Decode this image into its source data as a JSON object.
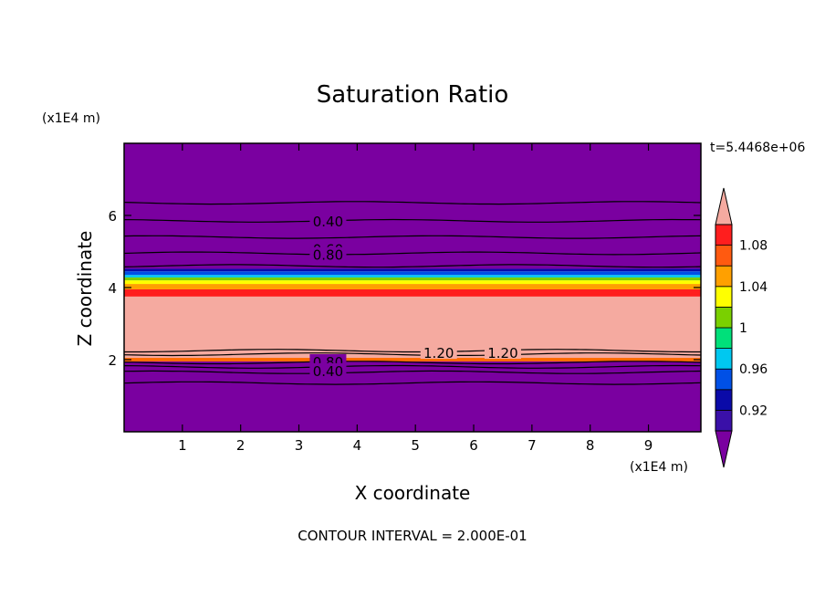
{
  "chart_data": {
    "type": "heatmap",
    "title": "Saturation Ratio",
    "xlabel": "X coordinate",
    "ylabel": "Z coordinate",
    "x_unit": "(x1E4 m)",
    "y_unit": "(x1E4 m)",
    "x_ticks": [
      "1",
      "2",
      "3",
      "4",
      "5",
      "6",
      "7",
      "8",
      "9"
    ],
    "y_ticks": [
      "2",
      "4",
      "6"
    ],
    "xlim": [
      0,
      9.9
    ],
    "ylim": [
      0,
      8.0
    ],
    "time_label": "t=5.4468e+06",
    "footer": "CONTOUR INTERVAL = 2.000E-01",
    "colorbar": {
      "labels": [
        "0.92",
        "0.96",
        "1",
        "1.04",
        "1.08"
      ],
      "levels": [
        0.92,
        0.94,
        0.96,
        0.98,
        1.0,
        1.02,
        1.04,
        1.06,
        1.08,
        1.1
      ],
      "colors": [
        "#7a00a0",
        "#3a10a8",
        "#0a0aa8",
        "#0050e6",
        "#00c8f0",
        "#00e07a",
        "#7ad000",
        "#ffff00",
        "#ffa000",
        "#ff5a10",
        "#ff1e1e",
        "#f5aaa0"
      ]
    },
    "bands": [
      {
        "z_from": 0.0,
        "z_to": 1.95,
        "color": "#7a00a0"
      },
      {
        "z_from": 1.95,
        "z_to": 2.05,
        "color": "#ff6a00"
      },
      {
        "z_from": 2.05,
        "z_to": 3.75,
        "color": "#f5aaa0"
      },
      {
        "z_from": 3.75,
        "z_to": 3.95,
        "color": "#ff1e1e"
      },
      {
        "z_from": 3.95,
        "z_to": 4.1,
        "color": "#ffa000"
      },
      {
        "z_from": 4.1,
        "z_to": 4.2,
        "color": "#ffff00"
      },
      {
        "z_from": 4.2,
        "z_to": 4.28,
        "color": "#7ad000"
      },
      {
        "z_from": 4.28,
        "z_to": 4.35,
        "color": "#00c8f0"
      },
      {
        "z_from": 4.35,
        "z_to": 4.45,
        "color": "#0050e6"
      },
      {
        "z_from": 4.45,
        "z_to": 4.52,
        "color": "#0a0aa8"
      },
      {
        "z_from": 4.52,
        "z_to": 8.0,
        "color": "#7a00a0"
      }
    ],
    "contours": [
      {
        "z": 1.35
      },
      {
        "z": 1.65
      },
      {
        "z": 1.8
      },
      {
        "z": 1.92
      },
      {
        "z": 2.15
      },
      {
        "z": 2.25
      },
      {
        "z": 4.6
      },
      {
        "z": 4.95
      },
      {
        "z": 5.4
      },
      {
        "z": 5.85
      },
      {
        "z": 6.35
      }
    ],
    "contour_labels": [
      {
        "text": "0.40",
        "x": 3.5,
        "z": 5.85
      },
      {
        "text": "0.60",
        "x": 3.5,
        "z": 5.08
      },
      {
        "text": "0.80",
        "x": 3.5,
        "z": 4.92
      },
      {
        "text": "1.20",
        "x": 5.4,
        "z": 2.2
      },
      {
        "text": "1.20",
        "x": 6.5,
        "z": 2.2
      },
      {
        "text": "0.80",
        "x": 3.5,
        "z": 1.95
      },
      {
        "text": "0.40",
        "x": 3.5,
        "z": 1.7
      }
    ]
  }
}
